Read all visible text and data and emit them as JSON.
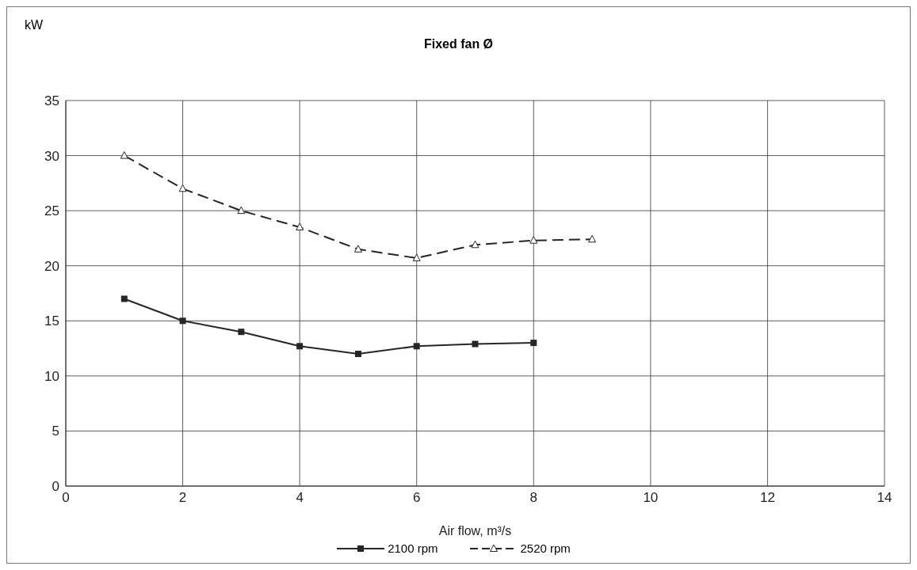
{
  "chart_data": {
    "type": "line",
    "title": "Fixed fan Ø",
    "xlabel": "Air flow, m³/s",
    "ylabel": "kW",
    "x": [
      1,
      2,
      3,
      4,
      5,
      6,
      7,
      8,
      9
    ],
    "series": [
      {
        "name": "2100 rpm",
        "color": "#262626",
        "marker": "square",
        "line_style": "solid",
        "values": [
          17,
          15,
          14,
          12.7,
          12,
          12.7,
          12.9,
          13,
          null
        ]
      },
      {
        "name": "2520 rpm",
        "color": "#262626",
        "marker": "triangle",
        "line_style": "dashed",
        "values": [
          30,
          27,
          25,
          23.5,
          21.5,
          20.7,
          21.9,
          22.3,
          22.4
        ]
      }
    ],
    "xlim": [
      0,
      14
    ],
    "xticks": [
      0,
      2,
      4,
      6,
      8,
      10,
      12,
      14
    ],
    "ylim": [
      0,
      35
    ],
    "yticks": [
      0,
      5,
      10,
      15,
      20,
      25,
      30,
      35
    ],
    "grid": true,
    "legend": "bottom"
  }
}
